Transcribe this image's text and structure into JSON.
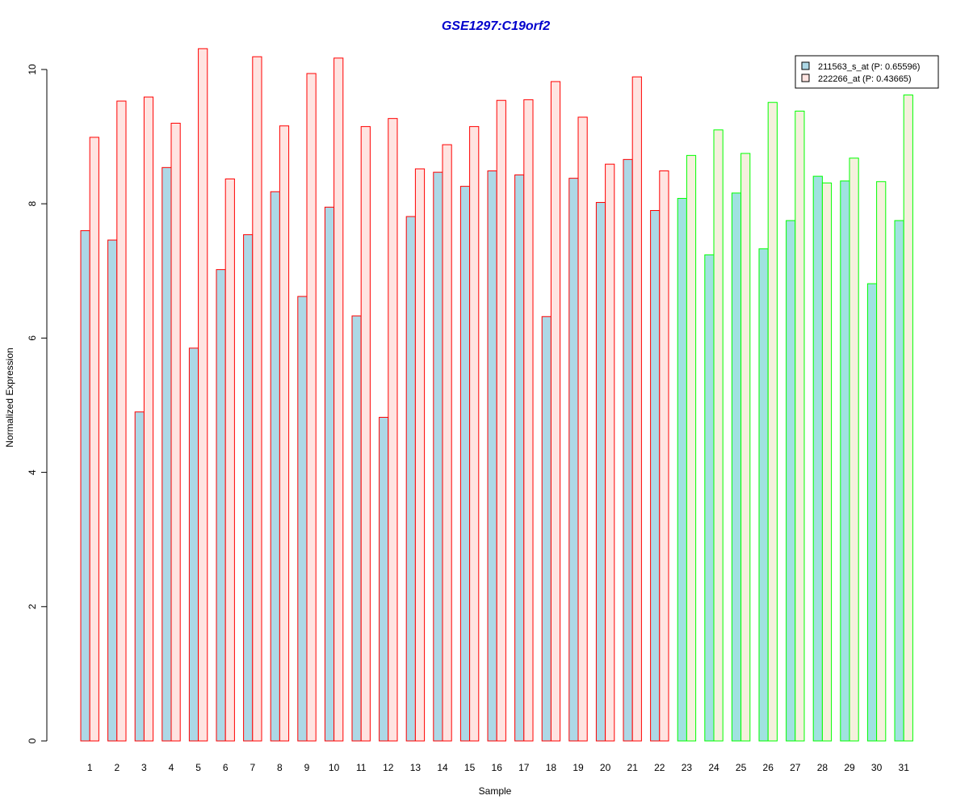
{
  "chart_data": {
    "type": "bar",
    "title": "GSE1297:C19orf2",
    "xlabel": "Sample",
    "ylabel": "Normalized Expression",
    "ylim": [
      0,
      10
    ],
    "yticks": [
      "0",
      "2",
      "4",
      "6",
      "8",
      "10"
    ],
    "categories": [
      "1",
      "2",
      "3",
      "4",
      "5",
      "6",
      "7",
      "8",
      "9",
      "10",
      "11",
      "12",
      "13",
      "14",
      "15",
      "16",
      "17",
      "18",
      "19",
      "20",
      "21",
      "22",
      "23",
      "24",
      "25",
      "26",
      "27",
      "28",
      "29",
      "30",
      "31"
    ],
    "series": [
      {
        "name": "211563_s_at (P: 0.65596)",
        "values": [
          7.6,
          7.46,
          4.9,
          8.54,
          5.85,
          7.02,
          7.54,
          8.18,
          6.62,
          7.95,
          6.33,
          4.82,
          7.81,
          8.47,
          8.26,
          8.49,
          8.43,
          6.32,
          8.38,
          8.02,
          8.66,
          7.9,
          8.08,
          7.24,
          8.16,
          7.33,
          7.75,
          8.41,
          8.34,
          6.81,
          7.75
        ]
      },
      {
        "name": "222266_at (P: 0.43665)",
        "values": [
          8.99,
          9.53,
          9.59,
          9.2,
          10.31,
          8.37,
          10.19,
          9.16,
          9.94,
          10.17,
          9.15,
          9.27,
          8.52,
          8.88,
          9.15,
          9.54,
          9.55,
          9.82,
          9.29,
          8.59,
          9.89,
          8.49,
          8.72,
          9.1,
          8.75,
          9.51,
          9.38,
          8.31,
          8.68,
          8.33,
          9.62
        ]
      }
    ],
    "groups": [
      {
        "from": 1,
        "to": 22,
        "border": "#ff0000",
        "fills": [
          "#add8e6",
          "#ffe4e1"
        ]
      },
      {
        "from": 23,
        "to": 31,
        "border": "#00ff00",
        "fills": [
          "#a0e2e0",
          "#f5f0dd"
        ]
      }
    ],
    "legend": {
      "placement": "top-right",
      "entries": [
        {
          "label": "211563_s_at (P: 0.65596)",
          "fill": "#add8e6"
        },
        {
          "label": "222266_at (P: 0.43665)",
          "fill": "#ffe4e1"
        }
      ]
    },
    "grid": false
  }
}
